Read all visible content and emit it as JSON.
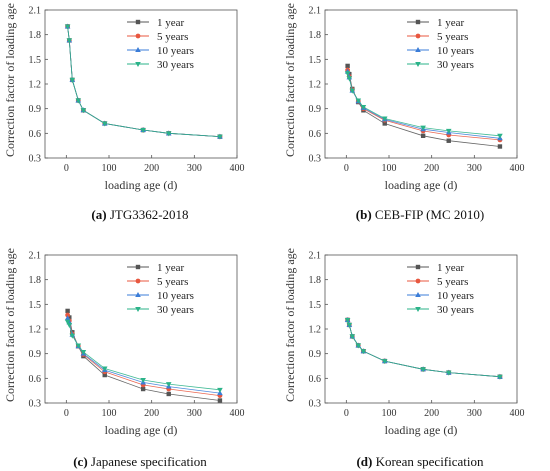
{
  "figure": {
    "captions": [
      {
        "letter": "(a)",
        "text": " JTG3362-2018"
      },
      {
        "letter": "(b)",
        "text": " CEB-FIP (MC 2010)"
      },
      {
        "letter": "(c)",
        "text": " Japanese specification"
      },
      {
        "letter": "(d)",
        "text": " Korean specification"
      }
    ]
  },
  "series_styles": [
    {
      "name": "1 year",
      "color": "#555555",
      "marker": "square"
    },
    {
      "name": "5 years",
      "color": "#e8573f",
      "marker": "circle"
    },
    {
      "name": "10 years",
      "color": "#3b7dd8",
      "marker": "triangle-up"
    },
    {
      "name": "30 years",
      "color": "#2bb389",
      "marker": "triangle-down"
    }
  ],
  "chart_data": [
    {
      "type": "line",
      "xlabel": "loading age (d)",
      "ylabel": "Correction factor of loading age",
      "xlim": [
        -50,
        400
      ],
      "ylim": [
        0.3,
        2.1
      ],
      "xticks": [
        0,
        100,
        200,
        300,
        400
      ],
      "yticks": [
        0.3,
        0.6,
        0.9,
        1.2,
        1.5,
        1.8,
        2.1
      ],
      "legend": "top-right",
      "x": [
        3,
        7,
        14,
        28,
        40,
        90,
        180,
        240,
        360
      ],
      "series": [
        {
          "name": "1 year",
          "values": [
            1.9,
            1.73,
            1.25,
            1.0,
            0.88,
            0.72,
            0.64,
            0.6,
            0.56
          ]
        },
        {
          "name": "5 years",
          "values": [
            1.9,
            1.73,
            1.25,
            1.0,
            0.88,
            0.72,
            0.64,
            0.6,
            0.56
          ]
        },
        {
          "name": "10 years",
          "values": [
            1.9,
            1.73,
            1.25,
            1.0,
            0.88,
            0.72,
            0.64,
            0.6,
            0.56
          ]
        },
        {
          "name": "30 years",
          "values": [
            1.9,
            1.73,
            1.25,
            1.0,
            0.88,
            0.72,
            0.64,
            0.6,
            0.56
          ]
        }
      ]
    },
    {
      "type": "line",
      "xlabel": "loading age (d)",
      "ylabel": "Correction factor of loading age",
      "xlim": [
        -50,
        400
      ],
      "ylim": [
        0.3,
        2.1
      ],
      "xticks": [
        0,
        100,
        200,
        300,
        400
      ],
      "yticks": [
        0.3,
        0.6,
        0.9,
        1.2,
        1.5,
        1.8,
        2.1
      ],
      "legend": "top-right",
      "x": [
        3,
        7,
        14,
        28,
        40,
        90,
        180,
        240,
        360
      ],
      "series": [
        {
          "name": "1 year",
          "values": [
            1.42,
            1.32,
            1.14,
            0.98,
            0.88,
            0.72,
            0.57,
            0.51,
            0.44
          ]
        },
        {
          "name": "5 years",
          "values": [
            1.37,
            1.29,
            1.13,
            0.99,
            0.9,
            0.76,
            0.63,
            0.58,
            0.52
          ]
        },
        {
          "name": "10 years",
          "values": [
            1.35,
            1.28,
            1.12,
            0.99,
            0.91,
            0.77,
            0.65,
            0.61,
            0.54
          ]
        },
        {
          "name": "30 years",
          "values": [
            1.33,
            1.27,
            1.12,
            1.0,
            0.92,
            0.78,
            0.67,
            0.63,
            0.57
          ]
        }
      ]
    },
    {
      "type": "line",
      "xlabel": "loading age (d)",
      "ylabel": "Correction factor of loading age",
      "xlim": [
        -50,
        400
      ],
      "ylim": [
        0.3,
        2.1
      ],
      "xticks": [
        0,
        100,
        200,
        300,
        400
      ],
      "yticks": [
        0.3,
        0.6,
        0.9,
        1.2,
        1.5,
        1.8,
        2.1
      ],
      "legend": "top-right",
      "x": [
        3,
        7,
        14,
        28,
        40,
        90,
        180,
        240,
        360
      ],
      "series": [
        {
          "name": "1 year",
          "values": [
            1.42,
            1.34,
            1.16,
            0.99,
            0.87,
            0.64,
            0.47,
            0.41,
            0.33
          ]
        },
        {
          "name": "5 years",
          "values": [
            1.37,
            1.3,
            1.14,
            0.99,
            0.89,
            0.68,
            0.52,
            0.47,
            0.39
          ]
        },
        {
          "name": "10 years",
          "values": [
            1.33,
            1.28,
            1.13,
            0.99,
            0.9,
            0.7,
            0.55,
            0.5,
            0.42
          ]
        },
        {
          "name": "30 years",
          "values": [
            1.29,
            1.25,
            1.12,
            1.0,
            0.92,
            0.72,
            0.58,
            0.53,
            0.46
          ]
        }
      ]
    },
    {
      "type": "line",
      "xlabel": "loading age (d)",
      "ylabel": "Correction factor of loading age",
      "xlim": [
        -50,
        400
      ],
      "ylim": [
        0.3,
        2.1
      ],
      "xticks": [
        0,
        100,
        200,
        300,
        400
      ],
      "yticks": [
        0.3,
        0.6,
        0.9,
        1.2,
        1.5,
        1.8,
        2.1
      ],
      "legend": "top-right",
      "x": [
        3,
        7,
        14,
        28,
        40,
        90,
        180,
        240,
        360
      ],
      "series": [
        {
          "name": "1 year",
          "values": [
            1.31,
            1.25,
            1.11,
            1.0,
            0.93,
            0.81,
            0.71,
            0.67,
            0.62
          ]
        },
        {
          "name": "5 years",
          "values": [
            1.31,
            1.25,
            1.11,
            1.0,
            0.93,
            0.81,
            0.71,
            0.67,
            0.62
          ]
        },
        {
          "name": "10 years",
          "values": [
            1.31,
            1.25,
            1.11,
            1.0,
            0.93,
            0.81,
            0.71,
            0.67,
            0.62
          ]
        },
        {
          "name": "30 years",
          "values": [
            1.31,
            1.25,
            1.11,
            1.0,
            0.93,
            0.81,
            0.71,
            0.67,
            0.62
          ]
        }
      ]
    }
  ]
}
